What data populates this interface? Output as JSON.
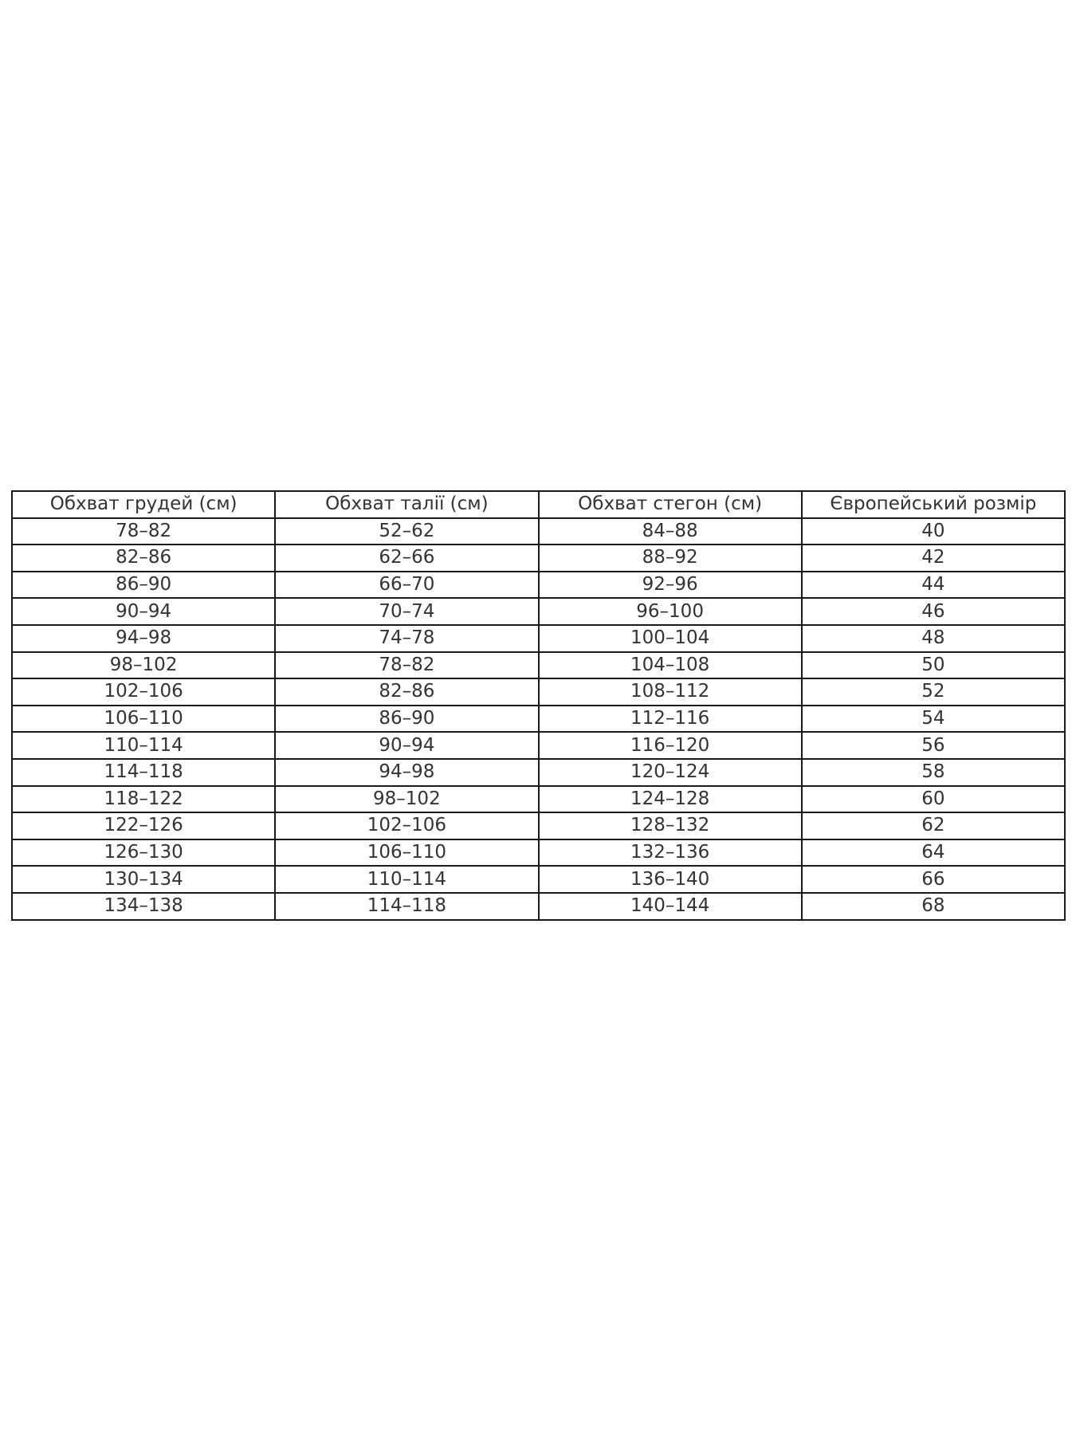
{
  "table": {
    "headers": [
      "Обхват грудей (см)",
      "Обхват талії (см)",
      "Обхват стегон (см)",
      "Європейський розмір"
    ],
    "rows": [
      [
        "78–82",
        "52–62",
        "84–88",
        "40"
      ],
      [
        "82–86",
        "62–66",
        "88–92",
        "42"
      ],
      [
        "86–90",
        "66–70",
        "92–96",
        "44"
      ],
      [
        "90–94",
        "70–74",
        "96–100",
        "46"
      ],
      [
        "94–98",
        "74–78",
        "100–104",
        "48"
      ],
      [
        "98–102",
        "78–82",
        "104–108",
        "50"
      ],
      [
        "102–106",
        "82–86",
        "108–112",
        "52"
      ],
      [
        "106–110",
        "86–90",
        "112–116",
        "54"
      ],
      [
        "110–114",
        "90–94",
        "116–120",
        "56"
      ],
      [
        "114–118",
        "94–98",
        "120–124",
        "58"
      ],
      [
        "118–122",
        "98–102",
        "124–128",
        "60"
      ],
      [
        "122–126",
        "102–106",
        "128–132",
        "62"
      ],
      [
        "126–130",
        "106–110",
        "132–136",
        "64"
      ],
      [
        "130–134",
        "110–114",
        "136–140",
        "66"
      ],
      [
        "134–138",
        "114–118",
        "140–144",
        "68"
      ]
    ]
  }
}
